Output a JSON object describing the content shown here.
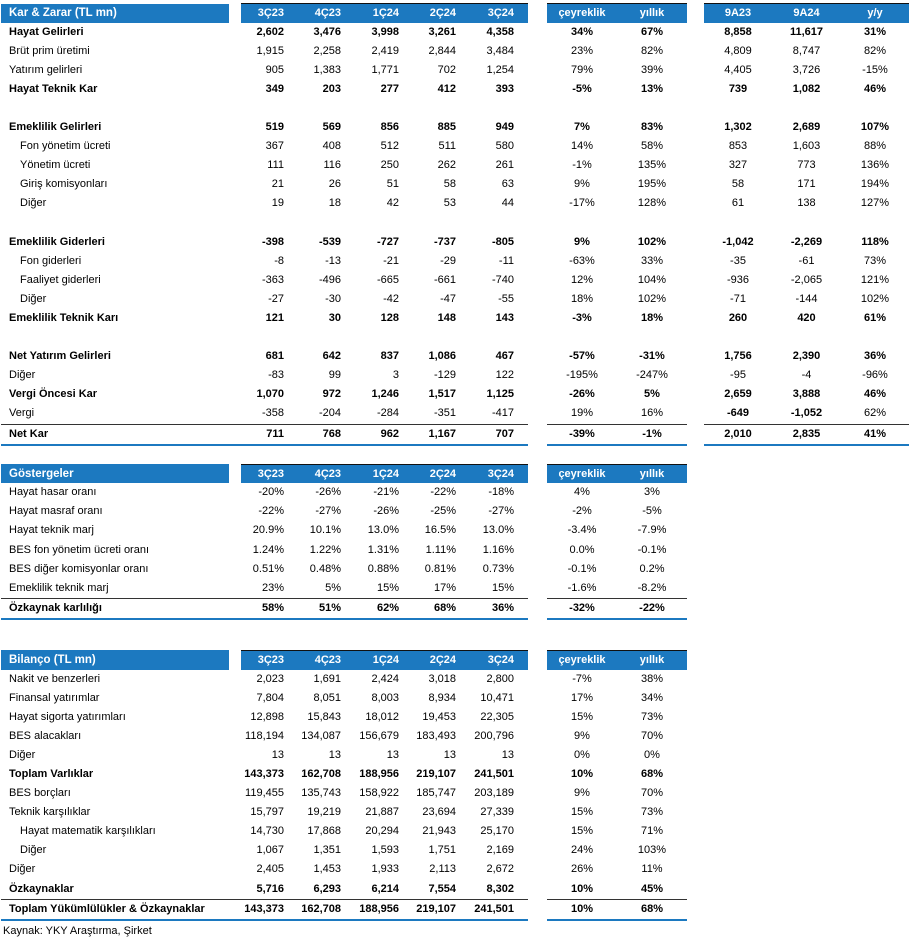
{
  "accent_color": "#1C79C0",
  "footer": {
    "source": "Kaynak: YKY Araştırma, Şirket"
  },
  "tables": [
    {
      "id": "kar-zarar",
      "title": "Kar & Zarar (TL mn)",
      "quarter_cols": [
        "3Ç23",
        "4Ç23",
        "1Ç24",
        "2Ç24",
        "3Ç24"
      ],
      "change_cols": [
        "çeyreklik",
        "yıllık"
      ],
      "period_cols": [
        "9A23",
        "9A24",
        "y/y"
      ],
      "rows": [
        {
          "label": "Hayat Gelirleri",
          "bold": true,
          "values": [
            "2,602",
            "3,476",
            "3,998",
            "3,261",
            "4,358"
          ],
          "changes": [
            "34%",
            "67%"
          ],
          "periods": [
            "8,858",
            "11,617",
            "31%"
          ]
        },
        {
          "label": "Brüt prim üretimi",
          "values": [
            "1,915",
            "2,258",
            "2,419",
            "2,844",
            "3,484"
          ],
          "changes": [
            "23%",
            "82%"
          ],
          "periods": [
            "4,809",
            "8,747",
            "82%"
          ]
        },
        {
          "label": "Yatırım gelirleri",
          "values": [
            "905",
            "1,383",
            "1,771",
            "702",
            "1,254"
          ],
          "changes": [
            "79%",
            "39%"
          ],
          "periods": [
            "4,405",
            "3,726",
            "-15%"
          ]
        },
        {
          "label": "Hayat Teknik Kar",
          "bold": true,
          "values": [
            "349",
            "203",
            "277",
            "412",
            "393"
          ],
          "changes": [
            "-5%",
            "13%"
          ],
          "periods": [
            "739",
            "1,082",
            "46%"
          ]
        },
        {
          "blank": true
        },
        {
          "label": "Emeklilik Gelirleri",
          "bold": true,
          "values": [
            "519",
            "569",
            "856",
            "885",
            "949"
          ],
          "changes": [
            "7%",
            "83%"
          ],
          "periods": [
            "1,302",
            "2,689",
            "107%"
          ]
        },
        {
          "label": "Fon yönetim ücreti",
          "indent": 1,
          "values": [
            "367",
            "408",
            "512",
            "511",
            "580"
          ],
          "changes": [
            "14%",
            "58%"
          ],
          "periods": [
            "853",
            "1,603",
            "88%"
          ]
        },
        {
          "label": "Yönetim ücreti",
          "indent": 1,
          "values": [
            "111",
            "116",
            "250",
            "262",
            "261"
          ],
          "changes": [
            "-1%",
            "135%"
          ],
          "periods": [
            "327",
            "773",
            "136%"
          ]
        },
        {
          "label": "Giriş komisyonları",
          "indent": 1,
          "values": [
            "21",
            "26",
            "51",
            "58",
            "63"
          ],
          "changes": [
            "9%",
            "195%"
          ],
          "periods": [
            "58",
            "171",
            "194%"
          ]
        },
        {
          "label": "Diğer",
          "indent": 1,
          "values": [
            "19",
            "18",
            "42",
            "53",
            "44"
          ],
          "changes": [
            "-17%",
            "128%"
          ],
          "periods": [
            "61",
            "138",
            "127%"
          ]
        },
        {
          "blank": true
        },
        {
          "label": "Emeklilik Giderleri",
          "bold": true,
          "values": [
            "-398",
            "-539",
            "-727",
            "-737",
            "-805"
          ],
          "changes": [
            "9%",
            "102%"
          ],
          "periods": [
            "-1,042",
            "-2,269",
            "118%"
          ]
        },
        {
          "label": "Fon giderleri",
          "indent": 1,
          "values": [
            "-8",
            "-13",
            "-21",
            "-29",
            "-11"
          ],
          "changes": [
            "-63%",
            "33%"
          ],
          "periods": [
            "-35",
            "-61",
            "73%"
          ]
        },
        {
          "label": "Faaliyet giderleri",
          "indent": 1,
          "values": [
            "-363",
            "-496",
            "-665",
            "-661",
            "-740"
          ],
          "changes": [
            "12%",
            "104%"
          ],
          "periods": [
            "-936",
            "-2,065",
            "121%"
          ]
        },
        {
          "label": "Diğer",
          "indent": 1,
          "values": [
            "-27",
            "-30",
            "-42",
            "-47",
            "-55"
          ],
          "changes": [
            "18%",
            "102%"
          ],
          "periods": [
            "-71",
            "-144",
            "102%"
          ]
        },
        {
          "label": "Emeklilik Teknik Karı",
          "bold": true,
          "values": [
            "121",
            "30",
            "128",
            "148",
            "143"
          ],
          "changes": [
            "-3%",
            "18%"
          ],
          "periods": [
            "260",
            "420",
            "61%"
          ]
        },
        {
          "blank": true
        },
        {
          "label": "Net Yatırım Gelirleri",
          "bold": true,
          "values": [
            "681",
            "642",
            "837",
            "1,086",
            "467"
          ],
          "changes": [
            "-57%",
            "-31%"
          ],
          "periods": [
            "1,756",
            "2,390",
            "36%"
          ]
        },
        {
          "label": "Diğer",
          "values": [
            "-83",
            "99",
            "3",
            "-129",
            "122"
          ],
          "changes": [
            "-195%",
            "-247%"
          ],
          "periods": [
            "-95",
            "-4",
            "-96%"
          ]
        },
        {
          "label": "Vergi Öncesi Kar",
          "bold": true,
          "values": [
            "1,070",
            "972",
            "1,246",
            "1,517",
            "1,125"
          ],
          "changes": [
            "-26%",
            "5%"
          ],
          "periods": [
            "2,659",
            "3,888",
            "46%"
          ]
        },
        {
          "label": "Vergi",
          "values": [
            "-358",
            "-204",
            "-284",
            "-351",
            "-417"
          ],
          "changes": [
            "19%",
            "16%"
          ],
          "periods": [
            "-649",
            "-1,052",
            "62%"
          ],
          "periods_bold": [
            0,
            1
          ]
        },
        {
          "label": "Net Kar",
          "bold": true,
          "total": true,
          "values": [
            "711",
            "768",
            "962",
            "1,167",
            "707"
          ],
          "changes": [
            "-39%",
            "-1%"
          ],
          "periods": [
            "2,010",
            "2,835",
            "41%"
          ]
        }
      ]
    },
    {
      "id": "gostergeler",
      "title": "Göstergeler",
      "quarter_cols": [
        "3Ç23",
        "4Ç23",
        "1Ç24",
        "2Ç24",
        "3Ç24"
      ],
      "change_cols": [
        "çeyreklik",
        "yıllık"
      ],
      "period_cols": null,
      "rows": [
        {
          "label": "Hayat hasar oranı",
          "values": [
            "-20%",
            "-26%",
            "-21%",
            "-22%",
            "-18%"
          ],
          "changes": [
            "4%",
            "3%"
          ]
        },
        {
          "label": "Hayat masraf oranı",
          "values": [
            "-22%",
            "-27%",
            "-26%",
            "-25%",
            "-27%"
          ],
          "changes": [
            "-2%",
            "-5%"
          ]
        },
        {
          "label": "Hayat teknik marj",
          "values": [
            "20.9%",
            "10.1%",
            "13.0%",
            "16.5%",
            "13.0%"
          ],
          "changes": [
            "-3.4%",
            "-7.9%"
          ]
        },
        {
          "label": "BES fon yönetim ücreti oranı",
          "values": [
            "1.24%",
            "1.22%",
            "1.31%",
            "1.11%",
            "1.16%"
          ],
          "changes": [
            "0.0%",
            "-0.1%"
          ]
        },
        {
          "label": "BES diğer komisyonlar oranı",
          "values": [
            "0.51%",
            "0.48%",
            "0.88%",
            "0.81%",
            "0.73%"
          ],
          "changes": [
            "-0.1%",
            "0.2%"
          ]
        },
        {
          "label": "Emeklilik teknik marj",
          "values": [
            "23%",
            "5%",
            "15%",
            "17%",
            "15%"
          ],
          "changes": [
            "-1.6%",
            "-8.2%"
          ]
        },
        {
          "label": "Özkaynak karlılığı",
          "bold": true,
          "total": true,
          "values": [
            "58%",
            "51%",
            "62%",
            "68%",
            "36%"
          ],
          "changes": [
            "-32%",
            "-22%"
          ]
        }
      ]
    },
    {
      "id": "bilanco",
      "title": "Bilanço (TL mn)",
      "quarter_cols": [
        "3Ç23",
        "4Ç23",
        "1Ç24",
        "2Ç24",
        "3Ç24"
      ],
      "change_cols": [
        "çeyreklik",
        "yıllık"
      ],
      "period_cols": null,
      "rows": [
        {
          "label": "Nakit ve benzerleri",
          "values": [
            "2,023",
            "1,691",
            "2,424",
            "3,018",
            "2,800"
          ],
          "changes": [
            "-7%",
            "38%"
          ]
        },
        {
          "label": "Finansal yatırımlar",
          "values": [
            "7,804",
            "8,051",
            "8,003",
            "8,934",
            "10,471"
          ],
          "changes": [
            "17%",
            "34%"
          ]
        },
        {
          "label": "Hayat sigorta yatırımları",
          "values": [
            "12,898",
            "15,843",
            "18,012",
            "19,453",
            "22,305"
          ],
          "changes": [
            "15%",
            "73%"
          ]
        },
        {
          "label": "BES alacakları",
          "values": [
            "118,194",
            "134,087",
            "156,679",
            "183,493",
            "200,796"
          ],
          "changes": [
            "9%",
            "70%"
          ]
        },
        {
          "label": "Diğer",
          "values": [
            "13",
            "13",
            "13",
            "13",
            "13"
          ],
          "changes": [
            "0%",
            "0%"
          ]
        },
        {
          "label": "Toplam Varlıklar",
          "bold": true,
          "values": [
            "143,373",
            "162,708",
            "188,956",
            "219,107",
            "241,501"
          ],
          "changes": [
            "10%",
            "68%"
          ]
        },
        {
          "label": "BES borçları",
          "values": [
            "119,455",
            "135,743",
            "158,922",
            "185,747",
            "203,189"
          ],
          "changes": [
            "9%",
            "70%"
          ]
        },
        {
          "label": "Teknik karşılıklar",
          "values": [
            "15,797",
            "19,219",
            "21,887",
            "23,694",
            "27,339"
          ],
          "changes": [
            "15%",
            "73%"
          ]
        },
        {
          "label": "Hayat matematik karşılıkları",
          "indent": 1,
          "values": [
            "14,730",
            "17,868",
            "20,294",
            "21,943",
            "25,170"
          ],
          "changes": [
            "15%",
            "71%"
          ]
        },
        {
          "label": "Diğer",
          "indent": 1,
          "values": [
            "1,067",
            "1,351",
            "1,593",
            "1,751",
            "2,169"
          ],
          "changes": [
            "24%",
            "103%"
          ]
        },
        {
          "label": "Diğer",
          "values": [
            "2,405",
            "1,453",
            "1,933",
            "2,113",
            "2,672"
          ],
          "changes": [
            "26%",
            "11%"
          ]
        },
        {
          "label": "Özkaynaklar",
          "bold": true,
          "values": [
            "5,716",
            "6,293",
            "6,214",
            "7,554",
            "8,302"
          ],
          "changes": [
            "10%",
            "45%"
          ]
        },
        {
          "label": "Toplam Yükümlülükler & Özkaynaklar",
          "bold": true,
          "total": true,
          "values": [
            "143,373",
            "162,708",
            "188,956",
            "219,107",
            "241,501"
          ],
          "changes": [
            "10%",
            "68%"
          ]
        }
      ]
    }
  ]
}
